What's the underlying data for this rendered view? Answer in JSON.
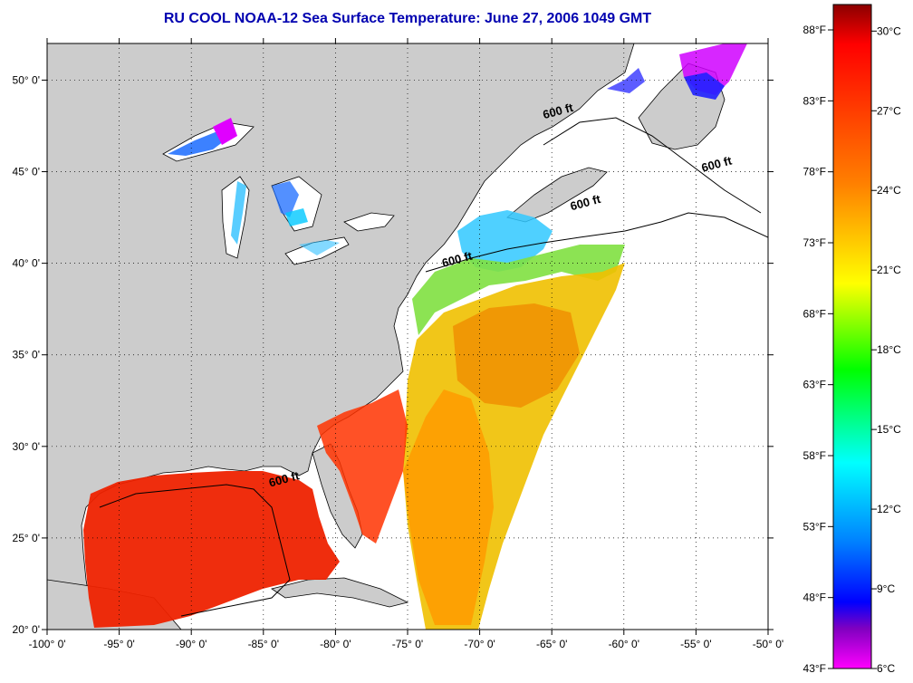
{
  "title": "RU COOL  NOAA-12  Sea Surface Temperature:  June 27, 2006 1049 GMT",
  "map": {
    "lon_range": [
      -100,
      -50
    ],
    "lat_range": [
      20,
      52
    ],
    "x_ticks": [
      {
        "value": -100,
        "label": "-100° 0'"
      },
      {
        "value": -95,
        "label": "-95° 0'"
      },
      {
        "value": -90,
        "label": "-90° 0'"
      },
      {
        "value": -85,
        "label": "-85° 0'"
      },
      {
        "value": -80,
        "label": "-80° 0'"
      },
      {
        "value": -75,
        "label": "-75° 0'"
      },
      {
        "value": -70,
        "label": "-70° 0'"
      },
      {
        "value": -65,
        "label": "-65° 0'"
      },
      {
        "value": -60,
        "label": "-60° 0'"
      },
      {
        "value": -55,
        "label": "-55° 0'"
      },
      {
        "value": -50,
        "label": "-50° 0'"
      }
    ],
    "y_ticks": [
      {
        "value": 20,
        "label": "20° 0'"
      },
      {
        "value": 25,
        "label": "25° 0'"
      },
      {
        "value": 30,
        "label": "30° 0'"
      },
      {
        "value": 35,
        "label": "35° 0'"
      },
      {
        "value": 40,
        "label": "40° 0'"
      },
      {
        "value": 45,
        "label": "45° 0'"
      },
      {
        "value": 50,
        "label": "50° 0'"
      }
    ],
    "contour_labels": [
      {
        "text": "600 ft",
        "lon": -64.5,
        "lat": 48.1
      },
      {
        "text": "600 ft",
        "lon": -62.6,
        "lat": 43.1
      },
      {
        "text": "600 ft",
        "lon": -53.5,
        "lat": 45.2
      },
      {
        "text": "600 ft",
        "lon": -71.5,
        "lat": 40.0
      },
      {
        "text": "600 ft",
        "lon": -83.5,
        "lat": 28.0
      }
    ],
    "colors": {
      "land": "#cccccc",
      "ocean": "#ffffff",
      "coast": "#000000",
      "grid": "#000000"
    }
  },
  "colorbar": {
    "fahrenheit_labels": [
      "88°F",
      "83°F",
      "78°F",
      "73°F",
      "68°F",
      "63°F",
      "58°F",
      "53°F",
      "48°F",
      "43°F"
    ],
    "celsius_labels": [
      "30°C",
      "27°C",
      "24°C",
      "21°C",
      "18°C",
      "15°C",
      "12°C",
      "9°C",
      "6°C"
    ],
    "range_c": [
      6,
      31
    ],
    "gradient": [
      "#8b0000",
      "#ff0000",
      "#ff8000",
      "#ffff00",
      "#00ff00",
      "#00ffff",
      "#0080ff",
      "#0000ff",
      "#8000c0",
      "#ff00ff"
    ]
  }
}
